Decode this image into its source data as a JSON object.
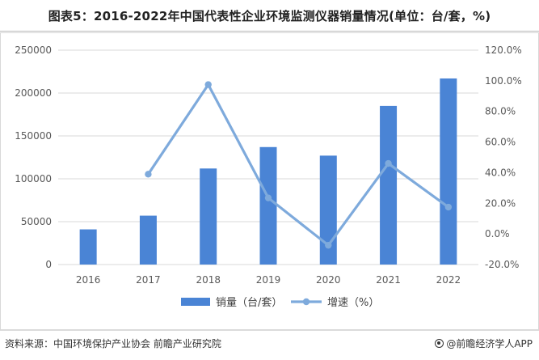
{
  "title": "图表5：2016-2022年中国代表性企业环境监测仪器销量情况(单位：台/套，%)",
  "source": "资料来源：中国环境保护产业协会 前瞻产业研究院",
  "credit": "@前瞻经济学人APP",
  "colors": {
    "bar": "#4a84d5",
    "line": "#7eaadc",
    "grid": "#d9d9d9",
    "axis_text": "#595959"
  },
  "chart_data": {
    "type": "bar",
    "categories": [
      "2016",
      "2017",
      "2018",
      "2019",
      "2020",
      "2021",
      "2022"
    ],
    "series": [
      {
        "name": "销量（台/套）",
        "type": "bar",
        "axis": "left",
        "values": [
          41000,
          57000,
          112000,
          137000,
          127000,
          185000,
          217000
        ]
      },
      {
        "name": "增速（%）",
        "type": "line",
        "axis": "right",
        "values": [
          null,
          39.0,
          97.5,
          23.5,
          -7.4,
          46.0,
          17.5
        ]
      }
    ],
    "y_left": {
      "min": 0,
      "max": 250000,
      "step": 50000,
      "ticks": [
        "0",
        "50000",
        "100000",
        "150000",
        "200000",
        "250000"
      ]
    },
    "y_right": {
      "min": -20,
      "max": 120,
      "step": 20,
      "ticks": [
        "-20.0%",
        "0.0%",
        "20.0%",
        "40.0%",
        "60.0%",
        "80.0%",
        "100.0%",
        "120.0%"
      ]
    },
    "grid": true,
    "legend_position": "bottom"
  }
}
